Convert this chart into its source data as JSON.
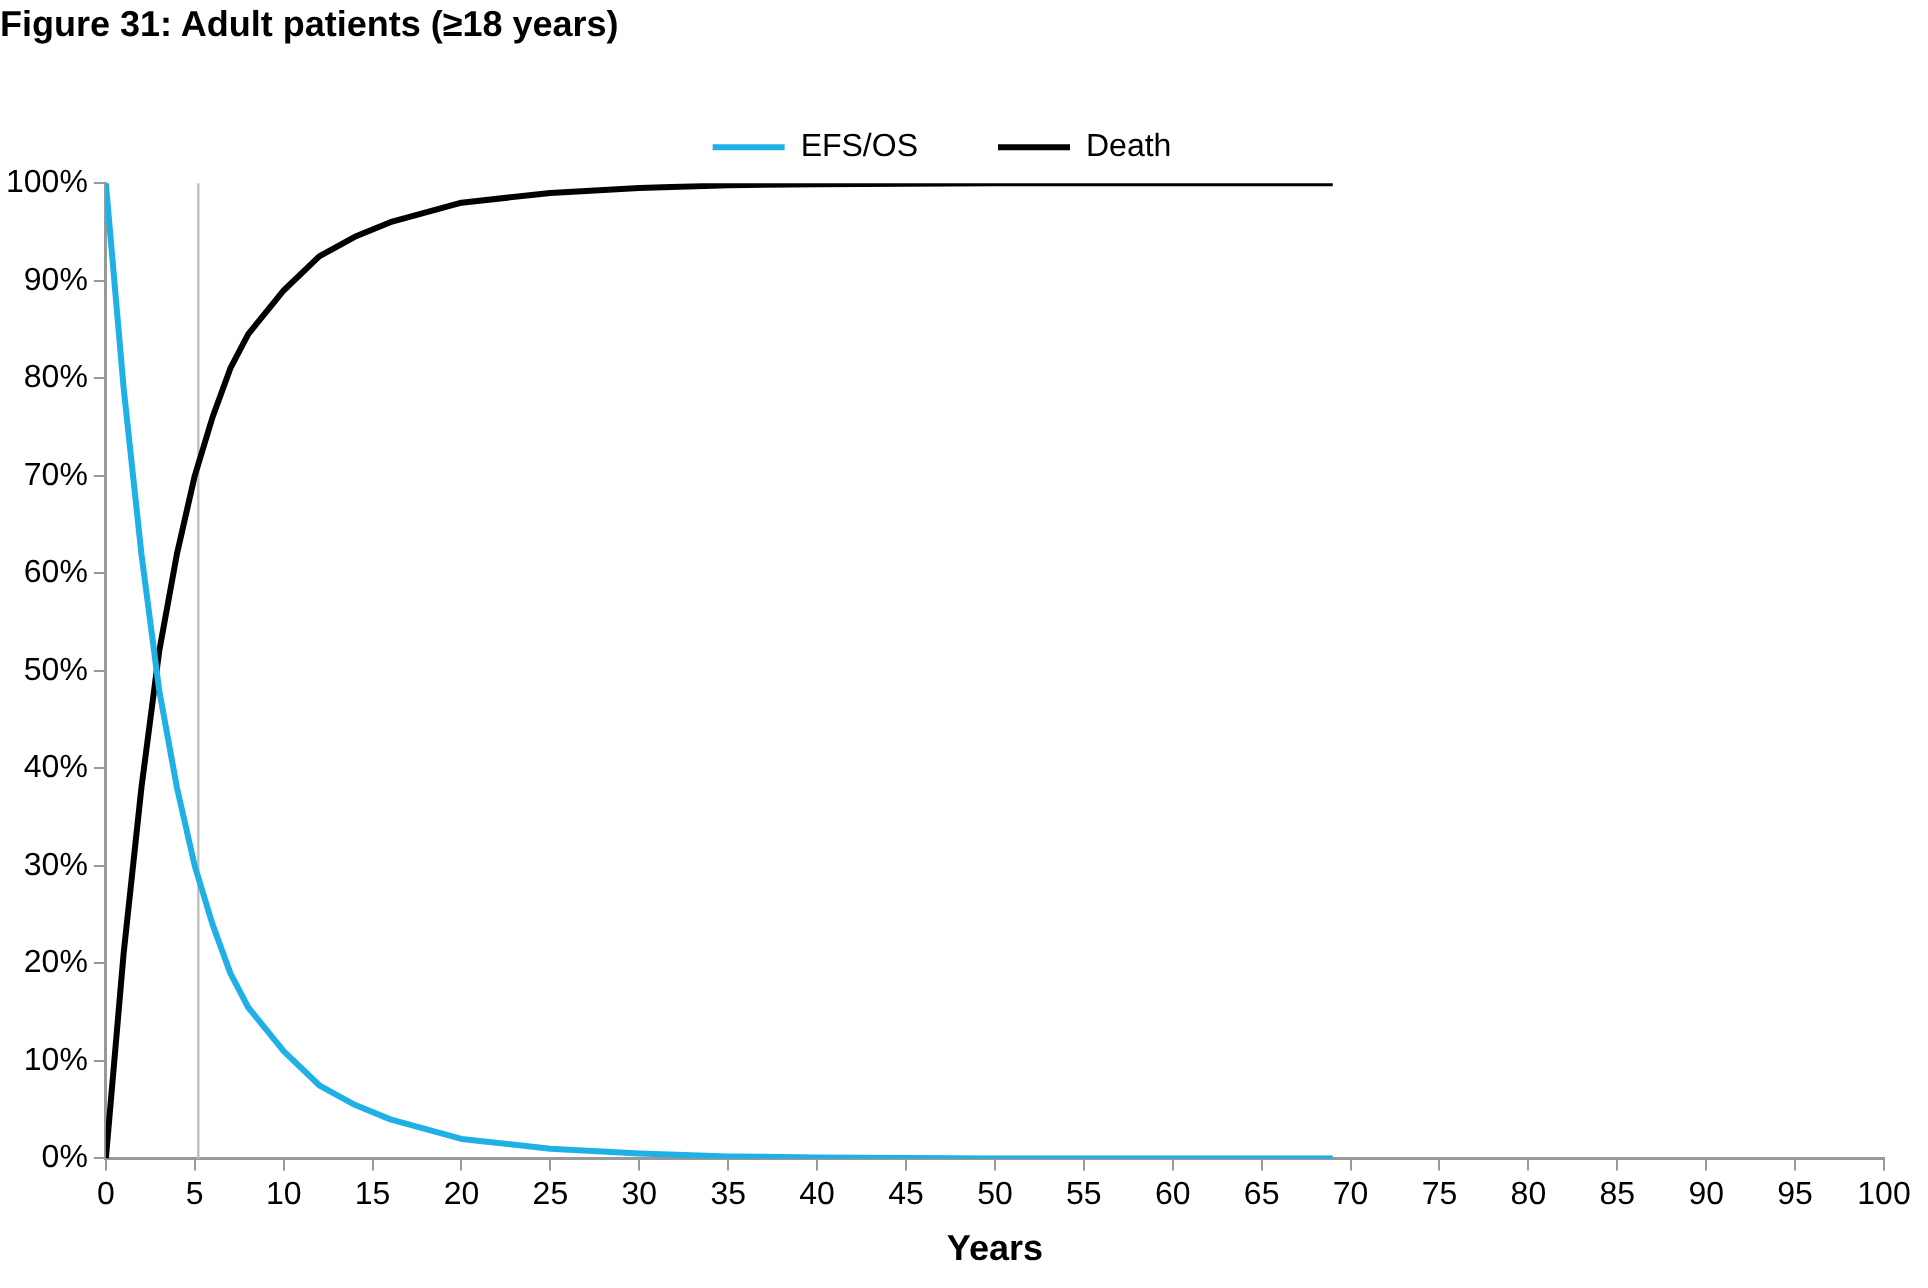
{
  "chart_data": {
    "type": "line",
    "title": "Figure 31: Adult patients (≥18 years)",
    "xlabel": "Years",
    "x": [
      0,
      1,
      2,
      3,
      4,
      5,
      6,
      7,
      8,
      10,
      12,
      14,
      16,
      18,
      20,
      25,
      30,
      35,
      40,
      50,
      60,
      69
    ],
    "series": [
      {
        "name": "EFS/OS",
        "color": "#1fb0e6",
        "values": [
          100,
          79,
          62,
          48,
          38,
          30,
          24,
          19,
          15.5,
          11,
          7.5,
          5.5,
          4,
          3,
          2,
          1,
          0.5,
          0.2,
          0.1,
          0,
          0,
          0
        ]
      },
      {
        "name": "Death",
        "color": "#000000",
        "values": [
          0,
          21,
          38,
          52,
          62,
          70,
          76,
          81,
          84.5,
          89,
          92.5,
          94.5,
          96,
          97,
          98,
          99,
          99.5,
          99.8,
          99.9,
          100,
          100,
          100
        ]
      }
    ],
    "xlim": [
      0,
      100
    ],
    "xticks": [
      0,
      5,
      10,
      15,
      20,
      25,
      30,
      35,
      40,
      45,
      50,
      55,
      60,
      65,
      70,
      75,
      80,
      85,
      90,
      95,
      100
    ],
    "ylim": [
      0,
      100
    ],
    "yticks": [
      {
        "value": 0,
        "label": "0%"
      },
      {
        "value": 10,
        "label": "10%"
      },
      {
        "value": 20,
        "label": "20%"
      },
      {
        "value": 30,
        "label": "30%"
      },
      {
        "value": 40,
        "label": "40%"
      },
      {
        "value": 50,
        "label": "50%"
      },
      {
        "value": 60,
        "label": "60%"
      },
      {
        "value": 70,
        "label": "70%"
      },
      {
        "value": 80,
        "label": "80%"
      },
      {
        "value": 90,
        "label": "90%"
      },
      {
        "value": 100,
        "label": "100%"
      }
    ],
    "ref_lines": [
      {
        "axis": "x",
        "value": 5.2,
        "color": "#c0c0c0"
      }
    ],
    "grid": false,
    "legend": "top",
    "marker": "none",
    "line_style": "solid"
  }
}
